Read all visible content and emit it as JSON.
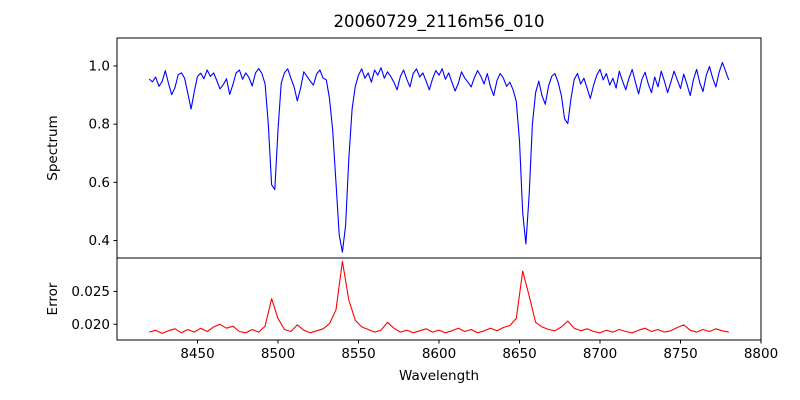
{
  "figure": {
    "background": "#ffffff",
    "frame_color": "#000000"
  },
  "chart_data": {
    "type": "line",
    "title": "20060729_2116m56_010",
    "xlabel": "Wavelength",
    "xlim": [
      8400,
      8800
    ],
    "xticks": [
      8450,
      8500,
      8550,
      8600,
      8650,
      8700,
      8750,
      8800
    ],
    "xtick_labels": [
      "8450",
      "8500",
      "8550",
      "8600",
      "8650",
      "8700",
      "8750",
      "8800"
    ],
    "grid": false,
    "legend": "none",
    "panels": [
      {
        "name": "spectrum",
        "ylabel": "Spectrum",
        "line_color": "#0000ff",
        "ylim": [
          0.34,
          1.096
        ],
        "yticks": [
          0.4,
          0.6,
          0.8,
          1.0
        ],
        "ytick_labels": [
          "0.4",
          "0.6",
          "0.8",
          "1.0"
        ],
        "series": {
          "name": "spectrum-flux",
          "x_start": 8420,
          "x_step": 2,
          "values": [
            0.955,
            0.945,
            0.962,
            0.93,
            0.946,
            0.984,
            0.94,
            0.901,
            0.926,
            0.97,
            0.976,
            0.958,
            0.906,
            0.852,
            0.912,
            0.964,
            0.975,
            0.956,
            0.986,
            0.964,
            0.976,
            0.95,
            0.921,
            0.936,
            0.956,
            0.902,
            0.936,
            0.976,
            0.986,
            0.954,
            0.976,
            0.96,
            0.931,
            0.976,
            0.991,
            0.974,
            0.938,
            0.8,
            0.592,
            0.575,
            0.78,
            0.94,
            0.976,
            0.99,
            0.958,
            0.928,
            0.88,
            0.922,
            0.98,
            0.964,
            0.948,
            0.934,
            0.972,
            0.986,
            0.958,
            0.952,
            0.888,
            0.778,
            0.598,
            0.42,
            0.36,
            0.452,
            0.68,
            0.852,
            0.93,
            0.968,
            0.99,
            0.958,
            0.976,
            0.944,
            0.986,
            0.968,
            0.994,
            0.958,
            0.98,
            0.964,
            0.944,
            0.918,
            0.964,
            0.986,
            0.954,
            0.928,
            0.974,
            0.99,
            0.962,
            0.976,
            0.948,
            0.918,
            0.956,
            0.984,
            0.968,
            0.99,
            0.954,
            0.976,
            0.944,
            0.914,
            0.94,
            0.98,
            0.958,
            0.944,
            0.928,
            0.96,
            0.984,
            0.964,
            0.938,
            0.974,
            0.928,
            0.898,
            0.95,
            0.974,
            0.958,
            0.93,
            0.944,
            0.918,
            0.878,
            0.742,
            0.495,
            0.388,
            0.56,
            0.8,
            0.908,
            0.948,
            0.898,
            0.868,
            0.93,
            0.964,
            0.974,
            0.944,
            0.898,
            0.818,
            0.802,
            0.888,
            0.954,
            0.974,
            0.938,
            0.958,
            0.924,
            0.888,
            0.934,
            0.968,
            0.988,
            0.952,
            0.974,
            0.934,
            0.958,
            0.924,
            0.982,
            0.948,
            0.918,
            0.958,
            0.988,
            0.944,
            0.904,
            0.954,
            0.978,
            0.938,
            0.908,
            0.962,
            0.928,
            0.982,
            0.948,
            0.908,
            0.944,
            0.982,
            0.952,
            0.922,
            0.972,
            0.938,
            0.898,
            0.952,
            0.988,
            0.942,
            0.912,
            0.968,
            0.998,
            0.958,
            0.928,
            0.978,
            1.012,
            0.982,
            0.952
          ]
        },
        "absorption_lines": [
          {
            "wavelength": 8497,
            "depth": 0.575
          },
          {
            "wavelength": 8540,
            "depth": 0.36
          },
          {
            "wavelength": 8654,
            "depth": 0.388
          }
        ]
      },
      {
        "name": "error",
        "ylabel": "Error",
        "line_color": "#ff0000",
        "ylim": [
          0.0176,
          0.0301
        ],
        "yticks": [
          0.02,
          0.025
        ],
        "ytick_labels": [
          "0.020",
          "0.025"
        ],
        "series": {
          "name": "error-values",
          "x_start": 8420,
          "x_step": 4,
          "values": [
            0.0188,
            0.0191,
            0.0186,
            0.019,
            0.0193,
            0.0187,
            0.0192,
            0.0188,
            0.0194,
            0.0189,
            0.0196,
            0.02,
            0.0194,
            0.0197,
            0.0189,
            0.0187,
            0.0192,
            0.0188,
            0.0197,
            0.0239,
            0.0209,
            0.0192,
            0.0189,
            0.0199,
            0.0191,
            0.0187,
            0.019,
            0.0193,
            0.0201,
            0.0222,
            0.0296,
            0.0237,
            0.0206,
            0.0196,
            0.0192,
            0.0188,
            0.0191,
            0.0203,
            0.0194,
            0.0188,
            0.0191,
            0.0187,
            0.019,
            0.0193,
            0.0188,
            0.0191,
            0.0187,
            0.019,
            0.0194,
            0.0189,
            0.0192,
            0.0187,
            0.019,
            0.0194,
            0.019,
            0.0195,
            0.0198,
            0.0209,
            0.0281,
            0.0243,
            0.0203,
            0.0196,
            0.0192,
            0.019,
            0.0196,
            0.0205,
            0.0194,
            0.019,
            0.0193,
            0.0189,
            0.0187,
            0.0191,
            0.0188,
            0.0192,
            0.0189,
            0.0187,
            0.0191,
            0.0194,
            0.0189,
            0.0192,
            0.0188,
            0.019,
            0.0195,
            0.0199,
            0.0191,
            0.0188,
            0.0192,
            0.0189,
            0.0193,
            0.019,
            0.0188
          ]
        }
      }
    ]
  }
}
